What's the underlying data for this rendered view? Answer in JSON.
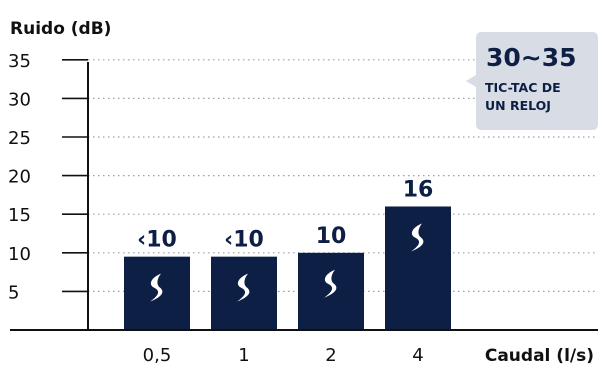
{
  "colors": {
    "bar": "#0d1f45",
    "text": "#111111",
    "grid": "#9aa0aa",
    "callout_bg": "#d8dce5",
    "callout_text": "#0d1f45"
  },
  "chart_data": {
    "type": "bar",
    "ylabel": "Ruido (dB)",
    "xlabel": "Caudal (l/s)",
    "categories": [
      "0,5",
      "1",
      "2",
      "4"
    ],
    "values": [
      9.5,
      9.5,
      10,
      16
    ],
    "data_labels": [
      "‹10",
      "‹10",
      "10",
      "16"
    ],
    "ylim": [
      0,
      36.5
    ],
    "yticks": [
      5,
      10,
      15,
      20,
      25,
      30,
      35
    ],
    "grid": "horizontal dotted",
    "bar_icon": "swoosh-logo-icon",
    "callout": {
      "value": "30~35",
      "line1": "TIC-TAC DE",
      "line2": "UN RELOJ",
      "refers_to_y": 35,
      "placement": "top-right"
    }
  }
}
